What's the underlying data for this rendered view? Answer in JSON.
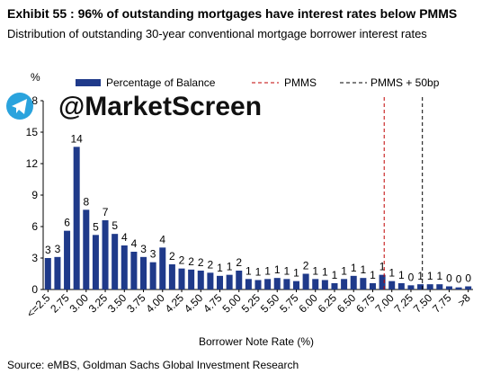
{
  "chart_data": {
    "type": "bar",
    "title": "Exhibit 55 : 96% of outstanding mortgages have interest rates below PMMS",
    "subtitle": "Distribution of outstanding 30-year conventional mortgage borrower interest rates",
    "ylabel": "%",
    "xlabel": "Borrower Note Rate (%)",
    "source": "Source: eMBS, Goldman Sachs Global Investment Research",
    "watermark": "@MarketScreen",
    "categories": [
      "<=2.5",
      null,
      "2.75",
      null,
      "3.00",
      null,
      "3.25",
      null,
      "3.50",
      null,
      "3.75",
      null,
      "4.00",
      null,
      "4.25",
      null,
      "4.50",
      null,
      "4.75",
      null,
      "5.00",
      null,
      "5.25",
      null,
      "5.50",
      null,
      "5.75",
      null,
      "6.00",
      null,
      "6.25",
      null,
      "6.50",
      null,
      "6.75",
      null,
      "7.00",
      null,
      "7.25",
      null,
      "7.50",
      null,
      "7.75",
      null,
      ">8"
    ],
    "series": [
      {
        "name": "Percentage of Balance",
        "color": "#1f3a8a",
        "values": [
          3.0,
          3.1,
          5.6,
          13.6,
          7.6,
          5.2,
          6.6,
          5.3,
          4.2,
          3.6,
          3.1,
          2.6,
          4.0,
          2.4,
          2.0,
          1.9,
          1.8,
          1.6,
          1.3,
          1.4,
          1.8,
          1.0,
          0.9,
          1.0,
          1.1,
          1.0,
          0.8,
          1.5,
          1.0,
          0.9,
          0.6,
          1.0,
          1.3,
          1.1,
          0.6,
          1.4,
          0.8,
          0.6,
          0.4,
          0.5,
          0.5,
          0.5,
          0.3,
          0.2,
          0.3
        ],
        "value_labels": [
          "3",
          "3",
          "6",
          "14",
          "8",
          "5",
          "7",
          "5",
          "4",
          "4",
          "3",
          "3",
          "4",
          "2",
          "2",
          "2",
          "2",
          "2",
          "1",
          "1",
          "2",
          "1",
          "1",
          "1",
          "1",
          "1",
          "1",
          "2",
          "1",
          "1",
          "1",
          "1",
          "1",
          "1",
          "1",
          "1",
          "1",
          "1",
          "0",
          "1",
          "1",
          "1",
          "0",
          "0",
          "0"
        ]
      }
    ],
    "reference_lines": [
      {
        "name": "PMMS",
        "x": 6.9,
        "color": "#c00000"
      },
      {
        "name": "PMMS + 50bp",
        "x": 7.4,
        "color": "#000000"
      }
    ],
    "x_start": 2.5,
    "x_step": 0.125,
    "ylim": [
      0,
      18
    ],
    "yticks": [
      0,
      3,
      6,
      9,
      12,
      15,
      18
    ]
  }
}
